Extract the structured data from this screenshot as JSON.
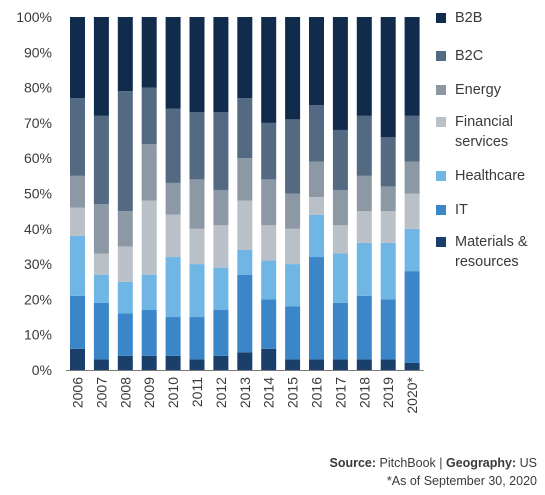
{
  "chart_data": {
    "type": "bar",
    "stacked": true,
    "percent": true,
    "categories": [
      "2006",
      "2007",
      "2008",
      "2009",
      "2010",
      "2011",
      "2012",
      "2013",
      "2014",
      "2015",
      "2016",
      "2017",
      "2018",
      "2019",
      "2020*"
    ],
    "yticks": [
      "0%",
      "10%",
      "20%",
      "30%",
      "40%",
      "50%",
      "60%",
      "70%",
      "80%",
      "90%",
      "100%"
    ],
    "ylim": [
      0,
      100
    ],
    "series": [
      {
        "name": "Materials & resources",
        "color": "#1b3f6b",
        "values": [
          6,
          3,
          4,
          4,
          4,
          3,
          4,
          5,
          6,
          3,
          3,
          3,
          3,
          3,
          2
        ]
      },
      {
        "name": "IT",
        "color": "#3a86c8",
        "values": [
          15,
          16,
          12,
          13,
          11,
          12,
          13,
          22,
          14,
          15,
          29,
          16,
          18,
          17,
          26
        ]
      },
      {
        "name": "Healthcare",
        "color": "#6fb6e4",
        "values": [
          17,
          8,
          9,
          10,
          17,
          15,
          12,
          7,
          11,
          12,
          12,
          14,
          15,
          16,
          12
        ]
      },
      {
        "name": "Financial services",
        "color": "#b9c0c8",
        "values": [
          8,
          6,
          10,
          21,
          12,
          10,
          12,
          14,
          10,
          10,
          5,
          8,
          9,
          9,
          10
        ]
      },
      {
        "name": "Energy",
        "color": "#8d98a5",
        "values": [
          9,
          14,
          10,
          16,
          9,
          14,
          10,
          12,
          13,
          10,
          10,
          10,
          10,
          7,
          9
        ]
      },
      {
        "name": "B2C",
        "color": "#536a82",
        "values": [
          22,
          25,
          34,
          16,
          21,
          19,
          22,
          17,
          16,
          21,
          16,
          17,
          17,
          14,
          13
        ]
      },
      {
        "name": "B2B",
        "color": "#102b4c",
        "values": [
          23,
          28,
          21,
          20,
          26,
          27,
          27,
          23,
          30,
          29,
          25,
          32,
          28,
          34,
          28
        ]
      }
    ]
  },
  "legend_order": [
    "B2B",
    "B2C",
    "Energy",
    "Financial services",
    "Healthcare",
    "IT",
    "Materials & resources"
  ],
  "legend_labels": [
    {
      "line1": "B2B",
      "line2": ""
    },
    {
      "line1": "B2C",
      "line2": ""
    },
    {
      "line1": "Energy",
      "line2": ""
    },
    {
      "line1": "Financial",
      "line2": "services"
    },
    {
      "line1": "Healthcare",
      "line2": ""
    },
    {
      "line1": "IT",
      "line2": ""
    },
    {
      "line1": "Materials &",
      "line2": "resources"
    }
  ],
  "footer": {
    "source_label": "Source:",
    "source_value": " PitchBook | ",
    "geo_label": "Geography:",
    "geo_value": " US",
    "note": "*As of September 30, 2020"
  }
}
